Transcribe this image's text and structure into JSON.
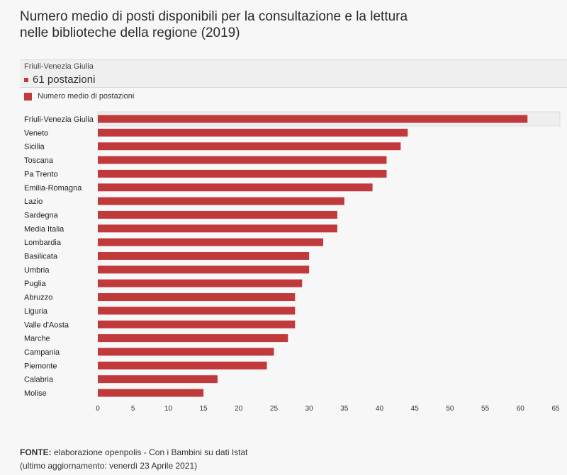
{
  "title_line1": "Numero medio di posti disponibili per la consultazione e la lettura",
  "title_line2": "nelle biblioteche della regione (2019)",
  "tooltip": {
    "region": "Friuli-Venezia Giulia",
    "value_text": "61 postazioni"
  },
  "legend_label": "Numero medio di postazioni",
  "footer": {
    "source_label": "FONTE:",
    "source_text": " elaborazione openpolis - Con i Bambini su dati Istat",
    "updated_text": "(ultimo aggiornamento: venerdì 23 Aprile 2021)"
  },
  "colors": {
    "bar": "#c0393b",
    "highlight_bg": "#eeeeee"
  },
  "chart_data": {
    "type": "bar",
    "orientation": "horizontal",
    "categories": [
      "Friuli-Venezia Giulia",
      "Veneto",
      "Sicilia",
      "Toscana",
      "Pa Trento",
      "Emilia-Romagna",
      "Lazio",
      "Sardegna",
      "Media Italia",
      "Lombardia",
      "Basilicata",
      "Umbria",
      "Puglia",
      "Abruzzo",
      "Liguria",
      "Valle d'Aosta",
      "Marche",
      "Campania",
      "Piemonte",
      "Calabria",
      "Molise"
    ],
    "series": [
      {
        "name": "Numero medio di postazioni",
        "values": [
          61,
          44,
          43,
          41,
          41,
          39,
          35,
          34,
          34,
          32,
          30,
          30,
          29,
          28,
          28,
          28,
          27,
          25,
          24,
          17,
          15
        ]
      }
    ],
    "xlim": [
      0,
      65
    ],
    "xticks": [
      "0",
      "5",
      "10",
      "15",
      "20",
      "25",
      "30",
      "35",
      "40",
      "45",
      "50",
      "55",
      "60",
      "65"
    ],
    "highlighted": "Friuli-Venezia Giulia",
    "grid": false,
    "legend": "top-left"
  }
}
